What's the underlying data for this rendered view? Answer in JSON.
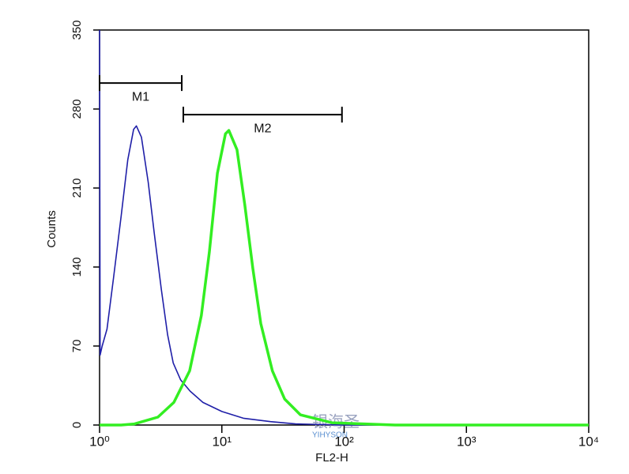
{
  "chart_data": {
    "type": "line",
    "x_label": "FL2-H",
    "y_label": "Counts",
    "xscale": "log",
    "xlim": [
      1,
      10000
    ],
    "ylim": [
      0,
      350
    ],
    "xticks": [
      {
        "value": 1,
        "label": "10⁰"
      },
      {
        "value": 10,
        "label": "10¹"
      },
      {
        "value": 100,
        "label": "10²"
      },
      {
        "value": 1000,
        "label": "10³"
      },
      {
        "value": 10000,
        "label": "10⁴"
      }
    ],
    "yticks": [
      0,
      70,
      140,
      210,
      280,
      350
    ],
    "series": [
      {
        "color": "#1f1fa8",
        "width": 1.6,
        "x": [
          1.0,
          1.01,
          1.05,
          1.15,
          1.3,
          1.5,
          1.7,
          1.9,
          2.0,
          2.2,
          2.5,
          2.8,
          3.2,
          3.6,
          4.0,
          4.6,
          5.5,
          7,
          10,
          15,
          25,
          40,
          100,
          10000
        ],
        "values": [
          350,
          62,
          70,
          85,
          130,
          185,
          235,
          262,
          265,
          255,
          215,
          170,
          120,
          80,
          55,
          40,
          30,
          20,
          12,
          6,
          3,
          1,
          0,
          0
        ]
      },
      {
        "color": "#33ee22",
        "width": 3.5,
        "x": [
          1.0,
          1.5,
          1.93,
          3.0,
          4.05,
          5.45,
          6.8,
          7.9,
          9.2,
          10.7,
          11.4,
          13.3,
          15.4,
          17.9,
          20.8,
          25.9,
          32.6,
          43.9,
          79.5,
          261,
          10000
        ],
        "values": [
          0,
          0,
          1,
          7,
          20,
          48,
          97,
          153,
          223,
          258,
          261,
          244,
          195,
          139,
          90,
          48,
          23,
          9,
          2,
          0,
          0
        ]
      }
    ],
    "gates": [
      {
        "label": "M1",
        "x": [
          1,
          4.7
        ],
        "y": 303
      },
      {
        "label": "M2",
        "x": [
          4.84,
          96
        ],
        "y": 275
      }
    ],
    "watermark": {
      "text": "银海圣",
      "sub": "YIHYSON"
    }
  }
}
